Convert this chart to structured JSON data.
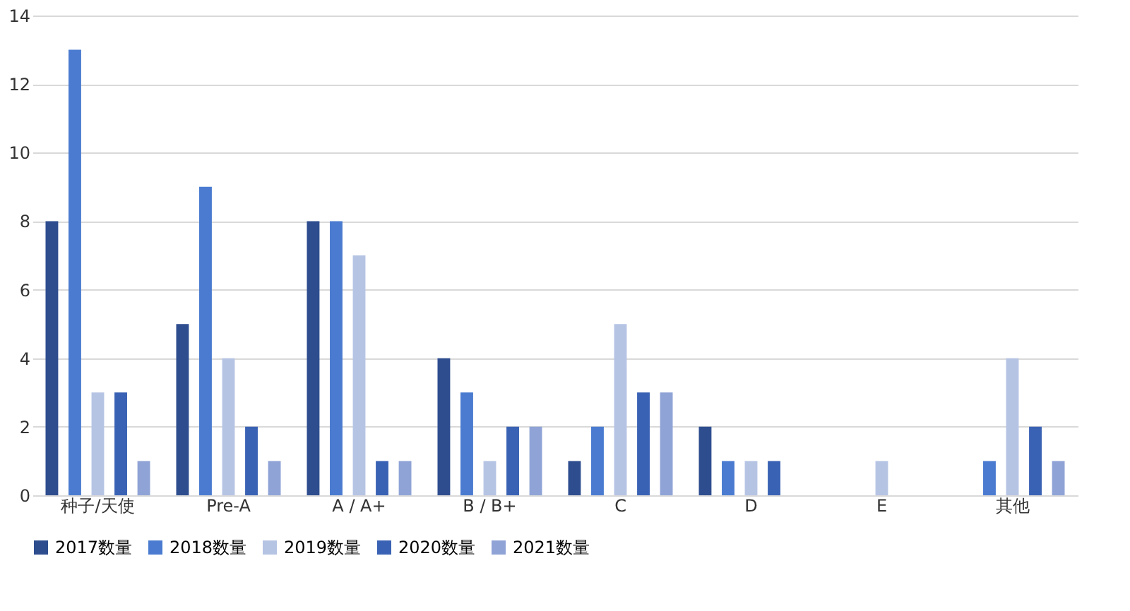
{
  "chart_data": {
    "type": "bar",
    "categories": [
      "种子/天使",
      "Pre-A",
      "A / A+",
      "B / B+",
      "C",
      "D",
      "E",
      "其他"
    ],
    "series": [
      {
        "name": "2017数量",
        "color": "#2e4d8f",
        "values": [
          8,
          5,
          8,
          4,
          1,
          2,
          null,
          null
        ]
      },
      {
        "name": "2018数量",
        "color": "#4a7bd0",
        "values": [
          13,
          9,
          8,
          3,
          2,
          1,
          null,
          1
        ]
      },
      {
        "name": "2019数量",
        "color": "#b6c4e4",
        "values": [
          3,
          4,
          7,
          1,
          5,
          1,
          1,
          4
        ]
      },
      {
        "name": "2020数量",
        "color": "#3a62b4",
        "values": [
          3,
          2,
          1,
          2,
          3,
          1,
          null,
          2
        ]
      },
      {
        "name": "2021数量",
        "color": "#8fa3d6",
        "values": [
          1,
          1,
          1,
          2,
          3,
          null,
          null,
          1
        ]
      }
    ],
    "ylim": [
      0,
      14
    ],
    "yticks": [
      0,
      2,
      4,
      6,
      8,
      10,
      12,
      14
    ],
    "grid": "y",
    "legend": "bottom"
  }
}
